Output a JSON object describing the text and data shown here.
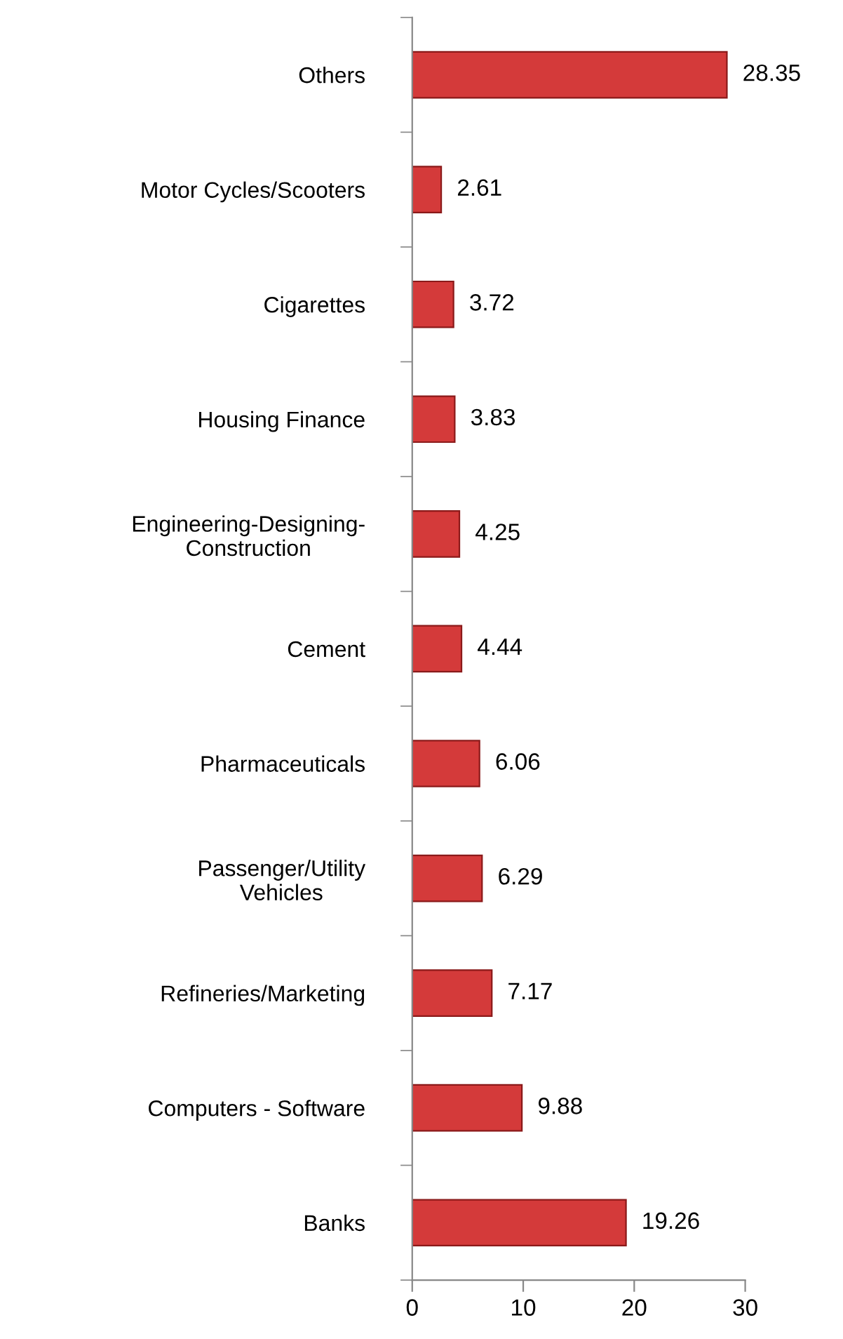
{
  "chart_data": {
    "type": "bar",
    "orientation": "horizontal",
    "categories": [
      "Others",
      "Motor Cycles/Scooters",
      "Cigarettes",
      "Housing Finance",
      "Engineering-Designing-\nConstruction",
      "Cement",
      "Pharmaceuticals",
      "Passenger/Utility\nVehicles",
      "Refineries/Marketing",
      "Computers - Software",
      "Banks"
    ],
    "values": [
      28.35,
      2.61,
      3.72,
      3.83,
      4.25,
      4.44,
      6.06,
      6.29,
      7.17,
      9.88,
      19.26
    ],
    "color": "#d43a3a",
    "xlim": [
      0,
      30
    ],
    "xticks": [
      0,
      10,
      20,
      30
    ],
    "data_labels": true,
    "grid": false,
    "legend": false
  }
}
